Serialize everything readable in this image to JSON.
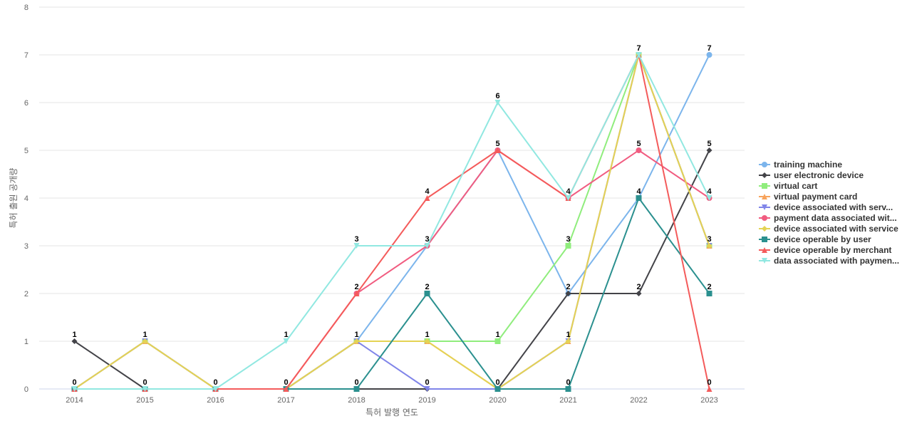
{
  "chart_data": {
    "type": "line",
    "xlabel": "특허 발행 연도",
    "ylabel": "특허 출원 공개량",
    "ylim": [
      0,
      8
    ],
    "y_ticks": [
      0,
      1,
      2,
      3,
      4,
      5,
      6,
      7,
      8
    ],
    "grid": true,
    "legend_position": "right",
    "categories": [
      "2014",
      "2015",
      "2016",
      "2017",
      "2018",
      "2019",
      "2020",
      "2021",
      "2022",
      "2023"
    ],
    "series": [
      {
        "name": "training machine",
        "color": "#7cb5ec",
        "marker": "circle",
        "values": [
          0,
          0,
          0,
          0,
          1,
          3,
          5,
          2,
          4,
          7
        ]
      },
      {
        "name": "user electronic device",
        "color": "#434348",
        "marker": "diamond",
        "values": [
          1,
          0,
          0,
          0,
          0,
          0,
          0,
          2,
          2,
          5
        ]
      },
      {
        "name": "virtual cart",
        "color": "#90ed7d",
        "marker": "square",
        "values": [
          0,
          1,
          0,
          0,
          1,
          1,
          1,
          3,
          7,
          3
        ]
      },
      {
        "name": "virtual payment card",
        "color": "#f7a35c",
        "marker": "triangle",
        "values": [
          0,
          1,
          0,
          0,
          1,
          1,
          0,
          1,
          7,
          3
        ]
      },
      {
        "name": "device associated with serv...",
        "color": "#8085e9",
        "marker": "triangle-down",
        "values": [
          0,
          1,
          0,
          0,
          1,
          0,
          0,
          1,
          7,
          3
        ]
      },
      {
        "name": "payment data associated wit...",
        "color": "#f15c80",
        "marker": "circle",
        "values": [
          0,
          0,
          0,
          0,
          2,
          3,
          5,
          4,
          5,
          4
        ]
      },
      {
        "name": "device associated with service",
        "color": "#e4d354",
        "marker": "diamond",
        "values": [
          0,
          1,
          0,
          0,
          1,
          1,
          0,
          1,
          7,
          3
        ]
      },
      {
        "name": "device operable by user",
        "color": "#2b908f",
        "marker": "square",
        "values": [
          0,
          0,
          0,
          0,
          0,
          2,
          0,
          0,
          4,
          2
        ]
      },
      {
        "name": "device operable by merchant",
        "color": "#f45b5b",
        "marker": "triangle",
        "values": [
          0,
          0,
          0,
          0,
          2,
          4,
          5,
          4,
          7,
          0
        ]
      },
      {
        "name": "data associated with paymen...",
        "color": "#91e8e1",
        "marker": "triangle-down",
        "values": [
          0,
          0,
          0,
          1,
          3,
          3,
          6,
          4,
          7,
          4
        ]
      }
    ],
    "data_labels": [
      {
        "category": "2014",
        "text": "1",
        "value": 1
      },
      {
        "category": "2014",
        "text": "0",
        "value": 0
      },
      {
        "category": "2015",
        "text": "1",
        "value": 1
      },
      {
        "category": "2015",
        "text": "0",
        "value": 0
      },
      {
        "category": "2016",
        "text": "0",
        "value": 0
      },
      {
        "category": "2017",
        "text": "1",
        "value": 1
      },
      {
        "category": "2017",
        "text": "0",
        "value": 0
      },
      {
        "category": "2018",
        "text": "3",
        "value": 3
      },
      {
        "category": "2018",
        "text": "2",
        "value": 2
      },
      {
        "category": "2018",
        "text": "1",
        "value": 1
      },
      {
        "category": "2018",
        "text": "0",
        "value": 0
      },
      {
        "category": "2019",
        "text": "4",
        "value": 4
      },
      {
        "category": "2019",
        "text": "3",
        "value": 3
      },
      {
        "category": "2019",
        "text": "2",
        "value": 2
      },
      {
        "category": "2019",
        "text": "1",
        "value": 1
      },
      {
        "category": "2019",
        "text": "0",
        "value": 0
      },
      {
        "category": "2020",
        "text": "6",
        "value": 6
      },
      {
        "category": "2020",
        "text": "5",
        "value": 5
      },
      {
        "category": "2020",
        "text": "1",
        "value": 1
      },
      {
        "category": "2020",
        "text": "0",
        "value": 0
      },
      {
        "category": "2021",
        "text": "4",
        "value": 4
      },
      {
        "category": "2021",
        "text": "3",
        "value": 3
      },
      {
        "category": "2021",
        "text": "2",
        "value": 2
      },
      {
        "category": "2021",
        "text": "1",
        "value": 1
      },
      {
        "category": "2021",
        "text": "0",
        "value": 0
      },
      {
        "category": "2022",
        "text": "7",
        "value": 7
      },
      {
        "category": "2022",
        "text": "5",
        "value": 5
      },
      {
        "category": "2022",
        "text": "4",
        "value": 4
      },
      {
        "category": "2022",
        "text": "2",
        "value": 2
      },
      {
        "category": "2023",
        "text": "7",
        "value": 7
      },
      {
        "category": "2023",
        "text": "5",
        "value": 5
      },
      {
        "category": "2023",
        "text": "4",
        "value": 4
      },
      {
        "category": "2023",
        "text": "3",
        "value": 3
      },
      {
        "category": "2023",
        "text": "2",
        "value": 2
      },
      {
        "category": "2023",
        "text": "0",
        "value": 0
      }
    ]
  }
}
